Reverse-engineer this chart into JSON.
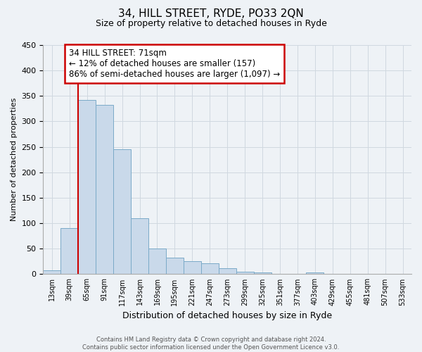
{
  "title": "34, HILL STREET, RYDE, PO33 2QN",
  "subtitle": "Size of property relative to detached houses in Ryde",
  "xlabel": "Distribution of detached houses by size in Ryde",
  "ylabel": "Number of detached properties",
  "footer_line1": "Contains HM Land Registry data © Crown copyright and database right 2024.",
  "footer_line2": "Contains public sector information licensed under the Open Government Licence v3.0.",
  "bin_labels": [
    "13sqm",
    "39sqm",
    "65sqm",
    "91sqm",
    "117sqm",
    "143sqm",
    "169sqm",
    "195sqm",
    "221sqm",
    "247sqm",
    "273sqm",
    "299sqm",
    "325sqm",
    "351sqm",
    "377sqm",
    "403sqm",
    "429sqm",
    "455sqm",
    "481sqm",
    "507sqm",
    "533sqm"
  ],
  "bar_heights": [
    7,
    90,
    342,
    332,
    245,
    110,
    50,
    33,
    26,
    22,
    12,
    5,
    3,
    1,
    0,
    3,
    0,
    0,
    0,
    0,
    1
  ],
  "bar_color": "#c9d9ea",
  "bar_edge_color": "#7aaac8",
  "grid_color": "#d0d8e0",
  "background_color": "#eef2f6",
  "vline_x": 2.0,
  "vline_color": "#cc0000",
  "annotation_title": "34 HILL STREET: 71sqm",
  "annotation_line1": "← 12% of detached houses are smaller (157)",
  "annotation_line2": "86% of semi-detached houses are larger (1,097) →",
  "annotation_box_color": "#ffffff",
  "annotation_box_edge": "#cc0000",
  "ylim": [
    0,
    450
  ],
  "yticks": [
    0,
    50,
    100,
    150,
    200,
    250,
    300,
    350,
    400,
    450
  ],
  "title_fontsize": 11,
  "subtitle_fontsize": 9,
  "ylabel_fontsize": 8,
  "xlabel_fontsize": 9,
  "tick_fontsize": 8,
  "annot_fontsize": 8.5
}
